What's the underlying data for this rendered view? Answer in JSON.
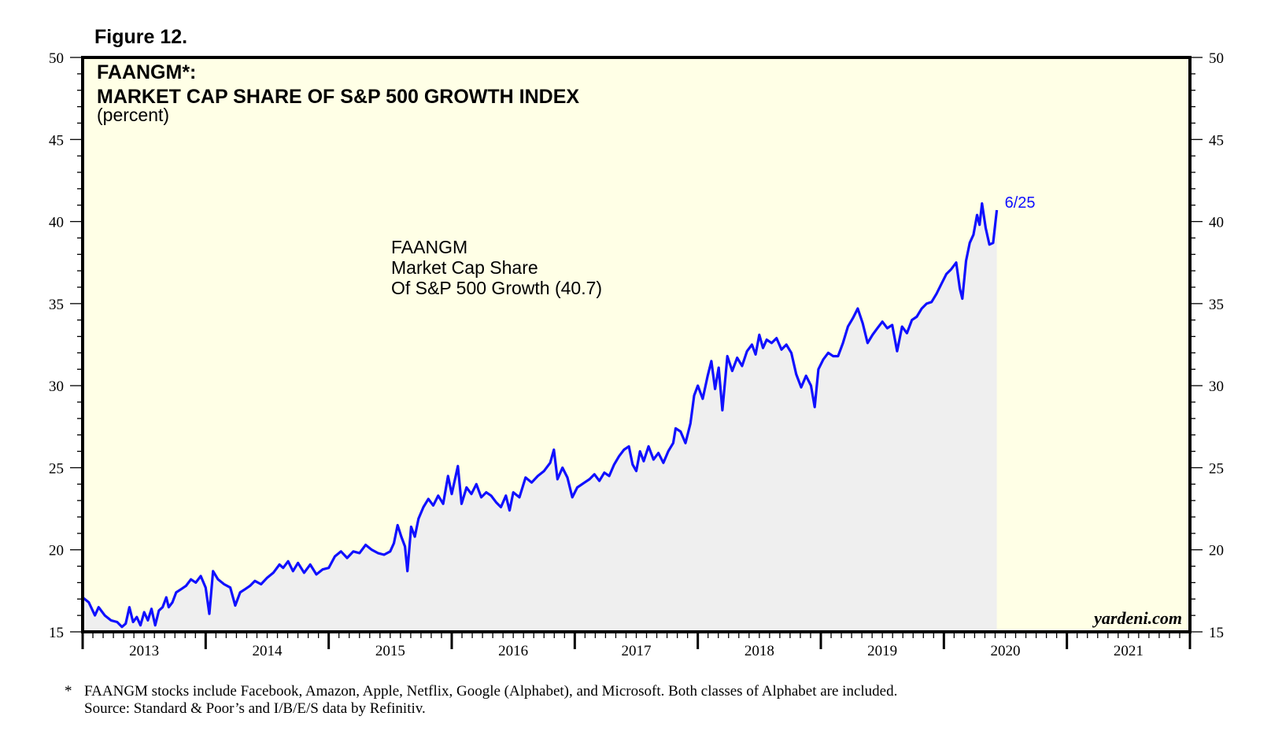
{
  "figure_label": "Figure 12.",
  "footnote": {
    "marker": "*",
    "line1": "FAANGM stocks include Facebook, Amazon, Apple, Netflix, Google (Alphabet), and Microsoft. Both classes of Alphabet are included.",
    "line2": "Source: Standard & Poor’s and I/B/E/S data by Refinitiv."
  },
  "brand": "yardeni.com",
  "colors": {
    "background": "#ffffe6",
    "line": "#1010ff",
    "area": "#efefef"
  },
  "chart_data": {
    "type": "line",
    "title_line1": "FAANGM*:",
    "title_line2": "MARKET CAP SHARE OF S&P 500 GROWTH INDEX",
    "subtitle": "(percent)",
    "annotation": [
      "FAANGM",
      "Market Cap Share",
      "Of S&P 500 Growth (40.7)"
    ],
    "end_label": "6/25",
    "ylim": [
      15,
      50
    ],
    "yticks": [
      15,
      20,
      25,
      30,
      35,
      40,
      45,
      50
    ],
    "xlim": [
      2012.5,
      2021.5
    ],
    "x_tick_labels": [
      {
        "label": "2013",
        "x": 2013.0
      },
      {
        "label": "2014",
        "x": 2014.0
      },
      {
        "label": "2015",
        "x": 2015.0
      },
      {
        "label": "2016",
        "x": 2016.0
      },
      {
        "label": "2017",
        "x": 2017.0
      },
      {
        "label": "2018",
        "x": 2018.0
      },
      {
        "label": "2019",
        "x": 2019.0
      },
      {
        "label": "2020",
        "x": 2020.0
      },
      {
        "label": "2021",
        "x": 2021.0
      }
    ],
    "series": [
      {
        "name": "FAANGM Market Cap Share Of S&P 500 Growth",
        "last_value": 40.7,
        "points": [
          [
            2012.5,
            17.1
          ],
          [
            2012.55,
            16.8
          ],
          [
            2012.6,
            16.0
          ],
          [
            2012.63,
            16.5
          ],
          [
            2012.68,
            16.0
          ],
          [
            2012.73,
            15.7
          ],
          [
            2012.78,
            15.6
          ],
          [
            2012.82,
            15.3
          ],
          [
            2012.85,
            15.5
          ],
          [
            2012.88,
            16.5
          ],
          [
            2012.91,
            15.6
          ],
          [
            2012.94,
            15.9
          ],
          [
            2012.97,
            15.4
          ],
          [
            2013.0,
            16.2
          ],
          [
            2013.03,
            15.7
          ],
          [
            2013.06,
            16.4
          ],
          [
            2013.09,
            15.4
          ],
          [
            2013.12,
            16.3
          ],
          [
            2013.15,
            16.5
          ],
          [
            2013.18,
            17.1
          ],
          [
            2013.2,
            16.5
          ],
          [
            2013.23,
            16.8
          ],
          [
            2013.26,
            17.4
          ],
          [
            2013.3,
            17.6
          ],
          [
            2013.34,
            17.8
          ],
          [
            2013.38,
            18.2
          ],
          [
            2013.42,
            18.0
          ],
          [
            2013.46,
            18.4
          ],
          [
            2013.5,
            17.7
          ],
          [
            2013.53,
            16.1
          ],
          [
            2013.56,
            18.7
          ],
          [
            2013.6,
            18.2
          ],
          [
            2013.65,
            17.9
          ],
          [
            2013.7,
            17.7
          ],
          [
            2013.74,
            16.6
          ],
          [
            2013.78,
            17.4
          ],
          [
            2013.82,
            17.6
          ],
          [
            2013.86,
            17.8
          ],
          [
            2013.9,
            18.1
          ],
          [
            2013.95,
            17.9
          ],
          [
            2014.0,
            18.3
          ],
          [
            2014.05,
            18.6
          ],
          [
            2014.1,
            19.1
          ],
          [
            2014.13,
            18.9
          ],
          [
            2014.17,
            19.3
          ],
          [
            2014.21,
            18.7
          ],
          [
            2014.25,
            19.2
          ],
          [
            2014.3,
            18.6
          ],
          [
            2014.35,
            19.1
          ],
          [
            2014.4,
            18.5
          ],
          [
            2014.45,
            18.8
          ],
          [
            2014.5,
            18.9
          ],
          [
            2014.55,
            19.6
          ],
          [
            2014.6,
            19.9
          ],
          [
            2014.65,
            19.5
          ],
          [
            2014.7,
            19.9
          ],
          [
            2014.75,
            19.8
          ],
          [
            2014.8,
            20.3
          ],
          [
            2014.85,
            20.0
          ],
          [
            2014.9,
            19.8
          ],
          [
            2014.95,
            19.7
          ],
          [
            2015.0,
            19.9
          ],
          [
            2015.03,
            20.4
          ],
          [
            2015.06,
            21.5
          ],
          [
            2015.09,
            20.8
          ],
          [
            2015.12,
            20.2
          ],
          [
            2015.14,
            18.7
          ],
          [
            2015.17,
            21.4
          ],
          [
            2015.2,
            20.8
          ],
          [
            2015.23,
            21.9
          ],
          [
            2015.27,
            22.6
          ],
          [
            2015.31,
            23.1
          ],
          [
            2015.35,
            22.7
          ],
          [
            2015.39,
            23.3
          ],
          [
            2015.43,
            22.8
          ],
          [
            2015.47,
            24.5
          ],
          [
            2015.5,
            23.4
          ],
          [
            2015.55,
            25.1
          ],
          [
            2015.58,
            22.8
          ],
          [
            2015.62,
            23.8
          ],
          [
            2015.66,
            23.4
          ],
          [
            2015.7,
            24.0
          ],
          [
            2015.74,
            23.2
          ],
          [
            2015.78,
            23.5
          ],
          [
            2015.82,
            23.3
          ],
          [
            2015.86,
            22.9
          ],
          [
            2015.9,
            22.6
          ],
          [
            2015.94,
            23.3
          ],
          [
            2015.97,
            22.4
          ],
          [
            2016.0,
            23.5
          ],
          [
            2016.05,
            23.2
          ],
          [
            2016.1,
            24.4
          ],
          [
            2016.15,
            24.1
          ],
          [
            2016.2,
            24.5
          ],
          [
            2016.25,
            24.8
          ],
          [
            2016.3,
            25.3
          ],
          [
            2016.33,
            26.1
          ],
          [
            2016.36,
            24.3
          ],
          [
            2016.4,
            25.0
          ],
          [
            2016.44,
            24.4
          ],
          [
            2016.48,
            23.2
          ],
          [
            2016.52,
            23.8
          ],
          [
            2016.58,
            24.1
          ],
          [
            2016.62,
            24.3
          ],
          [
            2016.66,
            24.6
          ],
          [
            2016.7,
            24.2
          ],
          [
            2016.74,
            24.7
          ],
          [
            2016.78,
            24.5
          ],
          [
            2016.82,
            25.2
          ],
          [
            2016.86,
            25.7
          ],
          [
            2016.9,
            26.1
          ],
          [
            2016.94,
            26.3
          ],
          [
            2016.97,
            25.2
          ],
          [
            2017.0,
            24.8
          ],
          [
            2017.03,
            26.0
          ],
          [
            2017.06,
            25.4
          ],
          [
            2017.1,
            26.3
          ],
          [
            2017.14,
            25.5
          ],
          [
            2017.18,
            25.9
          ],
          [
            2017.22,
            25.3
          ],
          [
            2017.26,
            26.0
          ],
          [
            2017.3,
            26.5
          ],
          [
            2017.32,
            27.4
          ],
          [
            2017.36,
            27.2
          ],
          [
            2017.4,
            26.5
          ],
          [
            2017.44,
            27.7
          ],
          [
            2017.47,
            29.4
          ],
          [
            2017.5,
            30.0
          ],
          [
            2017.54,
            29.2
          ],
          [
            2017.58,
            30.6
          ],
          [
            2017.61,
            31.5
          ],
          [
            2017.64,
            29.8
          ],
          [
            2017.67,
            31.1
          ],
          [
            2017.7,
            28.5
          ],
          [
            2017.74,
            31.8
          ],
          [
            2017.78,
            30.9
          ],
          [
            2017.82,
            31.7
          ],
          [
            2017.86,
            31.2
          ],
          [
            2017.9,
            32.1
          ],
          [
            2017.94,
            32.5
          ],
          [
            2017.97,
            31.9
          ],
          [
            2018.0,
            33.1
          ],
          [
            2018.03,
            32.3
          ],
          [
            2018.06,
            32.8
          ],
          [
            2018.1,
            32.6
          ],
          [
            2018.14,
            32.9
          ],
          [
            2018.18,
            32.2
          ],
          [
            2018.22,
            32.5
          ],
          [
            2018.26,
            32.0
          ],
          [
            2018.3,
            30.7
          ],
          [
            2018.34,
            29.9
          ],
          [
            2018.38,
            30.6
          ],
          [
            2018.42,
            30.0
          ],
          [
            2018.45,
            28.7
          ],
          [
            2018.48,
            31.0
          ],
          [
            2018.52,
            31.6
          ],
          [
            2018.56,
            32.0
          ],
          [
            2018.6,
            31.8
          ],
          [
            2018.64,
            31.8
          ],
          [
            2018.68,
            32.6
          ],
          [
            2018.72,
            33.6
          ],
          [
            2018.76,
            34.1
          ],
          [
            2018.8,
            34.7
          ],
          [
            2018.84,
            33.8
          ],
          [
            2018.88,
            32.6
          ],
          [
            2018.92,
            33.1
          ],
          [
            2018.96,
            33.5
          ],
          [
            2019.0,
            33.9
          ],
          [
            2019.04,
            33.5
          ],
          [
            2019.08,
            33.7
          ],
          [
            2019.12,
            32.1
          ],
          [
            2019.16,
            33.6
          ],
          [
            2019.2,
            33.2
          ],
          [
            2019.24,
            34.0
          ],
          [
            2019.28,
            34.2
          ],
          [
            2019.32,
            34.7
          ],
          [
            2019.36,
            35.0
          ],
          [
            2019.4,
            35.1
          ],
          [
            2019.44,
            35.6
          ],
          [
            2019.48,
            36.2
          ],
          [
            2019.52,
            36.8
          ],
          [
            2019.56,
            37.1
          ],
          [
            2019.6,
            37.5
          ],
          [
            2019.63,
            35.9
          ],
          [
            2019.65,
            35.3
          ],
          [
            2019.68,
            37.6
          ],
          [
            2019.71,
            38.7
          ],
          [
            2019.74,
            39.2
          ],
          [
            2019.77,
            40.4
          ],
          [
            2019.79,
            39.8
          ],
          [
            2019.81,
            41.1
          ],
          [
            2019.84,
            39.6
          ],
          [
            2019.87,
            38.6
          ],
          [
            2019.9,
            38.7
          ],
          [
            2019.93,
            40.7
          ]
        ]
      }
    ]
  }
}
